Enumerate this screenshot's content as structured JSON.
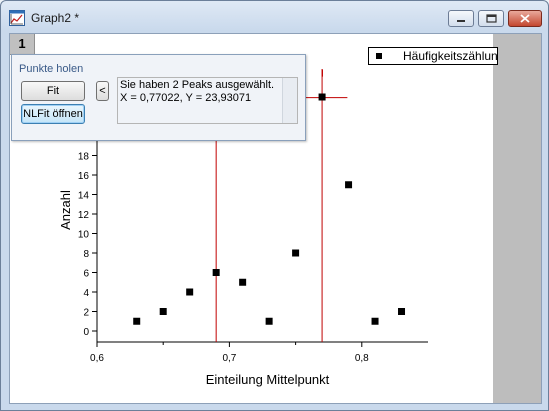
{
  "window": {
    "title": "Graph2 *",
    "controls": [
      "minimize",
      "restore",
      "close"
    ]
  },
  "layer": {
    "label": "1"
  },
  "legend": {
    "text": "Häufigkeitszählung vor"
  },
  "panel": {
    "title": "Punkte holen",
    "fit_button": "Fit",
    "nlfit_button": "NLFit öffnen",
    "arrow_button": "<",
    "message_line1": "Sie haben 2 Peaks ausgewählt.",
    "message_line2": "X = 0,77022, Y = 23,93071"
  },
  "colors": {
    "marker": "#000000",
    "peak_line": "#c00000",
    "background": "#ffffff",
    "side_strip": "#bdbdbd"
  },
  "chart_data": {
    "type": "scatter",
    "xlabel": "Einteilung Mittelpunkt",
    "ylabel": "Anzahl",
    "xlim": [
      0.6,
      0.85
    ],
    "ylim": [
      -1,
      26
    ],
    "xticks": [
      0.6,
      0.7,
      0.8
    ],
    "xtick_labels": [
      "0,6",
      "0,7",
      "0,8"
    ],
    "yticks": [
      0,
      2,
      4,
      6,
      8,
      10,
      12,
      14,
      16,
      18
    ],
    "ytick_labels": [
      "0",
      "2",
      "4",
      "6",
      "8",
      "10",
      "12",
      "14",
      "16",
      "18"
    ],
    "series": [
      {
        "x": [
          0.63,
          0.65,
          0.67,
          0.69,
          0.71,
          0.73,
          0.75,
          0.77,
          0.79,
          0.81,
          0.83
        ],
        "y": [
          1,
          2,
          4,
          6,
          5,
          1,
          8,
          24,
          15,
          1,
          2
        ]
      }
    ],
    "peak_lines_x": [
      0.69,
      0.77
    ],
    "selected_point": {
      "x": 0.77022,
      "y": 23.93071
    }
  }
}
